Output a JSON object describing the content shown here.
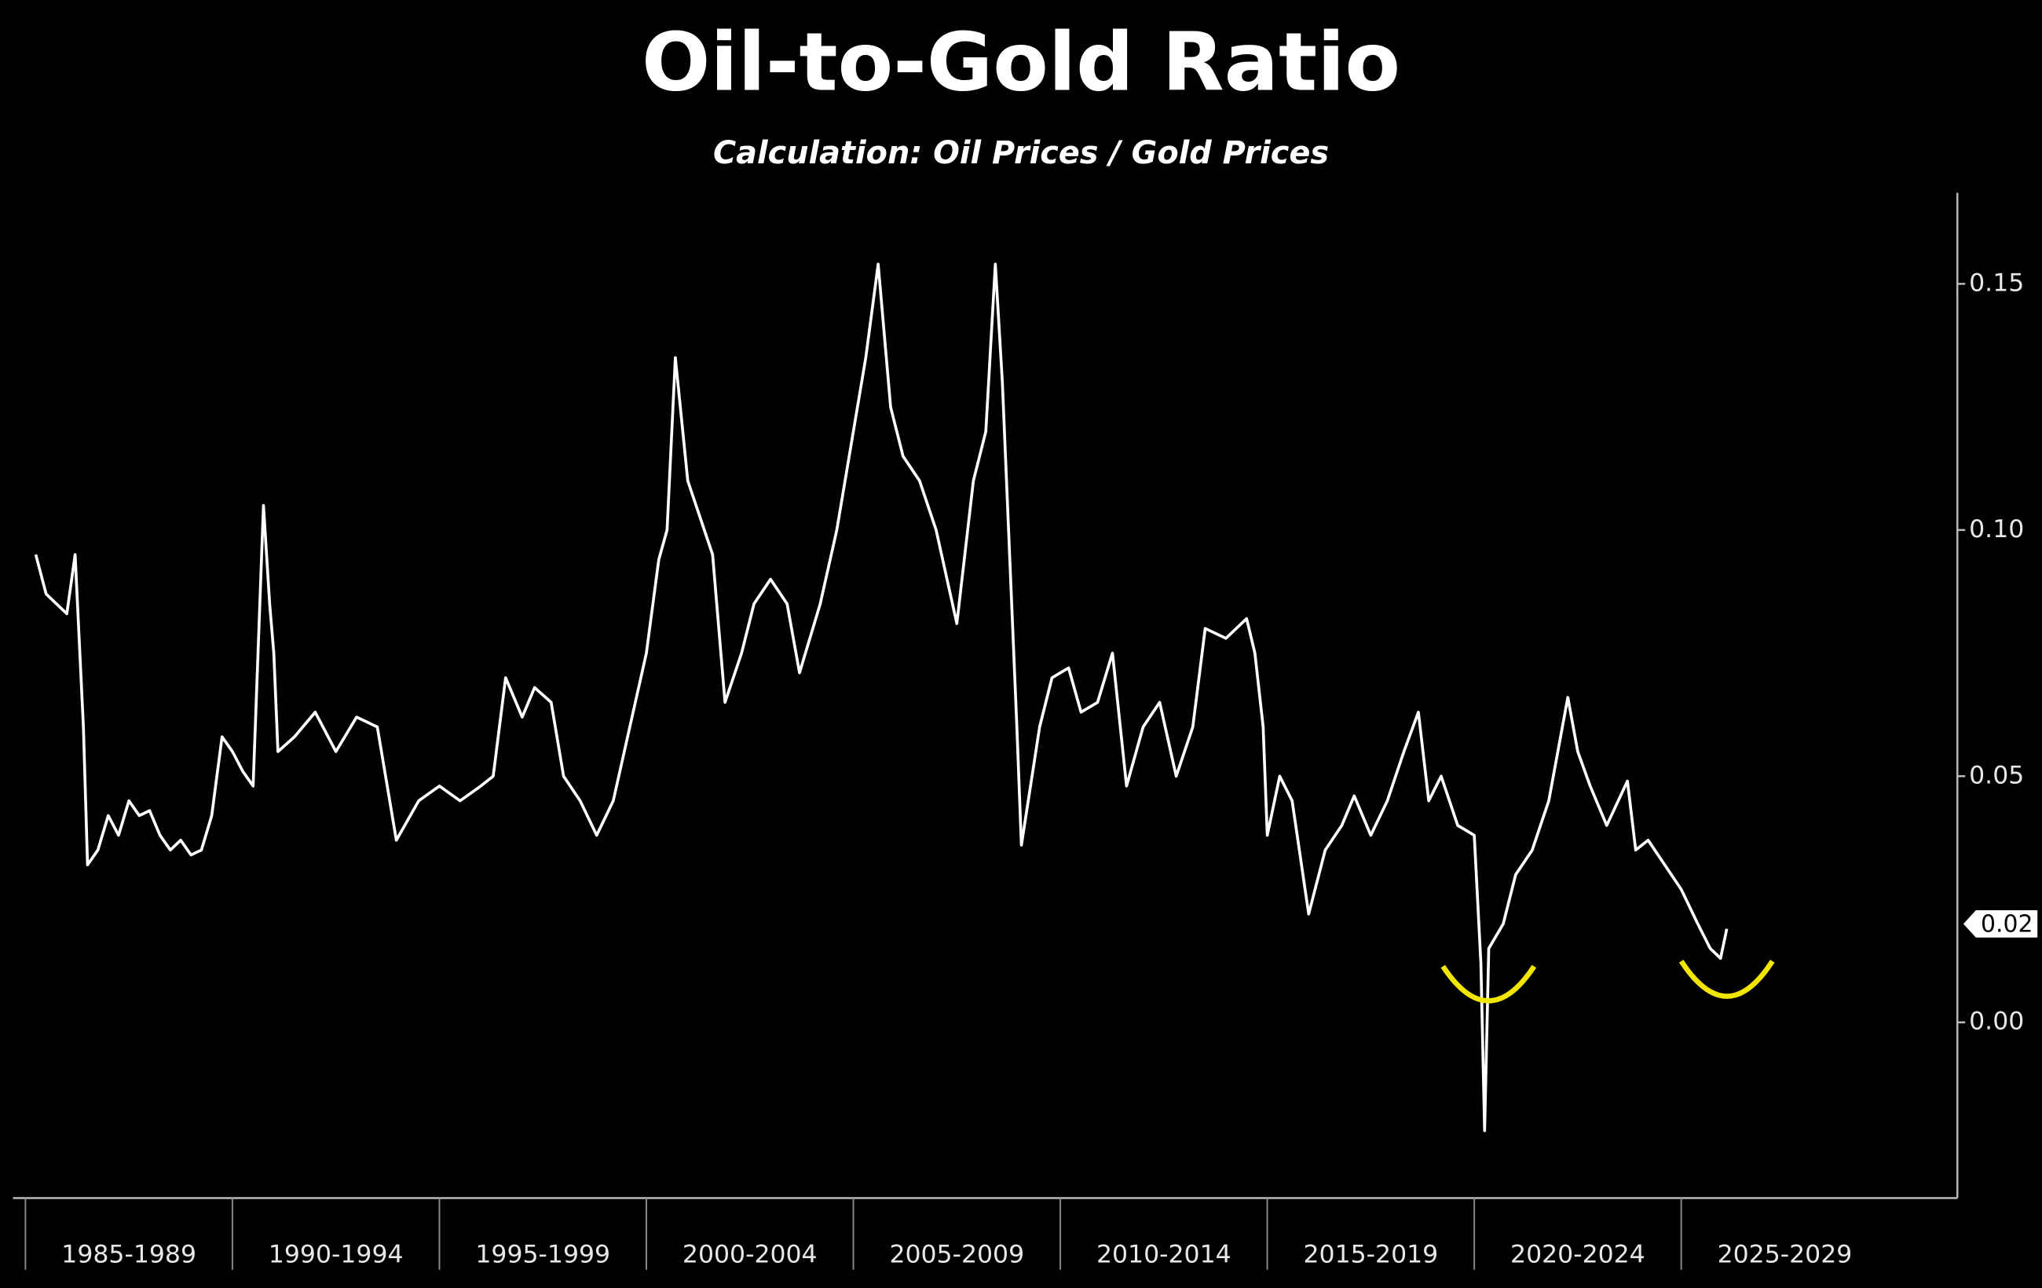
{
  "chart_data": {
    "type": "line",
    "title": "Oil-to-Gold Ratio",
    "subtitle": "Calculation: Oil Prices / Gold Prices",
    "color": "#ffffff",
    "x": [
      1985.25,
      1985.5,
      1985.75,
      1986.0,
      1986.2,
      1986.4,
      1986.5,
      1986.75,
      1987.0,
      1987.25,
      1987.5,
      1987.75,
      1988.0,
      1988.25,
      1988.5,
      1988.75,
      1989.0,
      1989.25,
      1989.5,
      1989.75,
      1990.0,
      1990.25,
      1990.5,
      1990.75,
      1990.9,
      1991.0,
      1991.1,
      1991.5,
      1992.0,
      1992.5,
      1993.0,
      1993.5,
      1993.96,
      1994.5,
      1995.0,
      1995.5,
      1996.0,
      1996.3,
      1996.6,
      1997.0,
      1997.3,
      1997.7,
      1998.0,
      1998.4,
      1998.8,
      1999.2,
      1999.6,
      2000.0,
      2000.3,
      2000.5,
      2000.7,
      2001.0,
      2001.4,
      2001.6,
      2001.9,
      2002.3,
      2002.6,
      2003.0,
      2003.4,
      2003.7,
      2004.2,
      2004.6,
      2005.0,
      2005.3,
      2005.6,
      2005.9,
      2006.2,
      2006.6,
      2007.0,
      2007.5,
      2007.9,
      2008.2,
      2008.43,
      2008.6,
      2008.8,
      2008.95,
      2009.06,
      2009.5,
      2009.8,
      2010.2,
      2010.5,
      2010.9,
      2011.26,
      2011.6,
      2012.0,
      2012.4,
      2012.8,
      2013.2,
      2013.5,
      2014.0,
      2014.5,
      2014.7,
      2014.9,
      2015.0,
      2015.3,
      2015.6,
      2016.0,
      2016.4,
      2016.8,
      2017.1,
      2017.5,
      2017.9,
      2018.3,
      2018.65,
      2018.9,
      2019.2,
      2019.6,
      2020.0,
      2020.16,
      2020.25,
      2020.35,
      2020.7,
      2021.0,
      2021.4,
      2021.8,
      2022.26,
      2022.5,
      2022.8,
      2023.2,
      2023.7,
      2023.9,
      2024.2,
      2024.6,
      2025.0,
      2025.4,
      2025.7,
      2025.95,
      2026.1
    ],
    "values": [
      0.095,
      0.087,
      0.085,
      0.083,
      0.095,
      0.06,
      0.032,
      0.035,
      0.042,
      0.038,
      0.045,
      0.042,
      0.043,
      0.038,
      0.035,
      0.037,
      0.034,
      0.035,
      0.042,
      0.058,
      0.055,
      0.051,
      0.048,
      0.105,
      0.085,
      0.075,
      0.055,
      0.058,
      0.063,
      0.055,
      0.062,
      0.06,
      0.037,
      0.045,
      0.048,
      0.045,
      0.048,
      0.05,
      0.07,
      0.062,
      0.068,
      0.065,
      0.05,
      0.045,
      0.038,
      0.045,
      0.06,
      0.075,
      0.094,
      0.1,
      0.135,
      0.11,
      0.1,
      0.095,
      0.065,
      0.075,
      0.085,
      0.09,
      0.085,
      0.071,
      0.085,
      0.1,
      0.12,
      0.135,
      0.154,
      0.125,
      0.115,
      0.11,
      0.1,
      0.081,
      0.11,
      0.12,
      0.154,
      0.13,
      0.09,
      0.06,
      0.036,
      0.06,
      0.07,
      0.072,
      0.063,
      0.065,
      0.075,
      0.048,
      0.06,
      0.065,
      0.05,
      0.06,
      0.08,
      0.078,
      0.082,
      0.075,
      0.06,
      0.038,
      0.05,
      0.045,
      0.022,
      0.035,
      0.04,
      0.046,
      0.038,
      0.045,
      0.055,
      0.063,
      0.045,
      0.05,
      0.04,
      0.038,
      0.012,
      -0.022,
      0.015,
      0.02,
      0.03,
      0.035,
      0.045,
      0.066,
      0.055,
      0.048,
      0.04,
      0.049,
      0.035,
      0.037,
      0.032,
      0.027,
      0.02,
      0.015,
      0.013,
      0.019
    ],
    "current_value": 0.02,
    "xlim": [
      1984.7,
      2031.67
    ],
    "xticks": [
      {
        "value": 1985,
        "label": "1985-1989"
      },
      {
        "value": 1990,
        "label": "1990-1994"
      },
      {
        "value": 1995,
        "label": "1995-1999"
      },
      {
        "value": 2000,
        "label": "2000-2004"
      },
      {
        "value": 2005,
        "label": "2005-2009"
      },
      {
        "value": 2010,
        "label": "2010-2014"
      },
      {
        "value": 2015,
        "label": "2015-2019"
      },
      {
        "value": 2020,
        "label": "2020-2024"
      },
      {
        "value": 2025,
        "label": "2025-2029"
      }
    ],
    "ylim": [
      -0.0357,
      0.1685
    ],
    "yticks": [
      0.15,
      {
        "value": 0.1,
        "label": "0.10"
      },
      0.05,
      {
        "value": 0,
        "label": "0.00"
      }
    ],
    "y_axis_side": "right"
  }
}
